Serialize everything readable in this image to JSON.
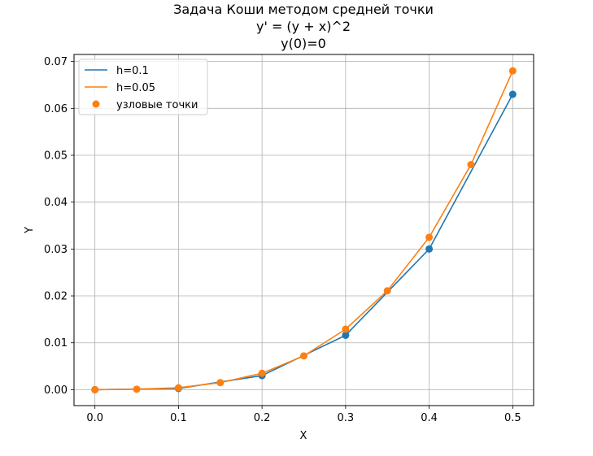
{
  "chart_data": {
    "type": "line",
    "title_lines": [
      "Задача Коши методом средней точки",
      "y' = (y + x)^2",
      "y(0)=0"
    ],
    "xlabel": "X",
    "ylabel": "Y",
    "xlim": [
      -0.025,
      0.525
    ],
    "ylim": [
      -0.0034,
      0.0715
    ],
    "x_ticks": [
      0.0,
      0.1,
      0.2,
      0.3,
      0.4,
      0.5
    ],
    "x_tick_labels": [
      "0.0",
      "0.1",
      "0.2",
      "0.3",
      "0.4",
      "0.5"
    ],
    "y_ticks": [
      0.0,
      0.01,
      0.02,
      0.03,
      0.04,
      0.05,
      0.06,
      0.07
    ],
    "y_tick_labels": [
      "0.00",
      "0.01",
      "0.02",
      "0.03",
      "0.04",
      "0.05",
      "0.06",
      "0.07"
    ],
    "grid": true,
    "legend_position": "top-left",
    "series": [
      {
        "name": "h=0.1",
        "color": "#1f77b4",
        "x": [
          0.0,
          0.1,
          0.2,
          0.3,
          0.4,
          0.5
        ],
        "y": [
          0.0,
          0.00025,
          0.003,
          0.0116,
          0.03,
          0.063
        ]
      },
      {
        "name": "h=0.05",
        "color": "#ff7f0e",
        "x": [
          0.0,
          0.05,
          0.1,
          0.15,
          0.2,
          0.25,
          0.3,
          0.35,
          0.4,
          0.45,
          0.5
        ],
        "y": [
          0.0,
          0.0001,
          0.0004,
          0.0015,
          0.0035,
          0.0072,
          0.0129,
          0.0211,
          0.0325,
          0.048,
          0.068
        ]
      }
    ],
    "nodes": {
      "name": "узловые точки",
      "series_colors": [
        "#1f77b4",
        "#ff7f0e"
      ],
      "legend_color": "#ff7f0e"
    }
  }
}
